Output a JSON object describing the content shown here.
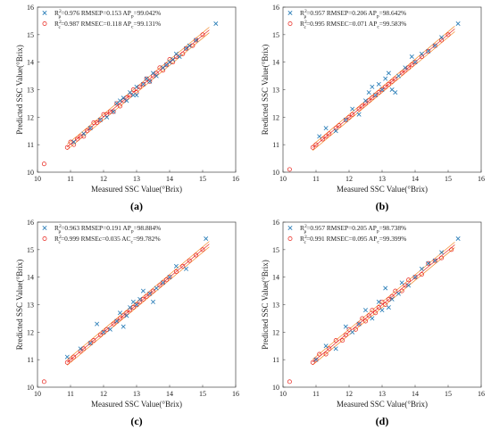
{
  "chart_data": [
    {
      "type": "scatter",
      "panel_label": "(a)",
      "xlabel": "Measured SSC Value(°Brix)",
      "ylabel": "Predicted SSC Value(°Brix)",
      "xlim": [
        10,
        16
      ],
      "ylim": [
        10,
        16
      ],
      "xticks": [
        "10",
        "11",
        "12",
        "13",
        "14",
        "15",
        "16"
      ],
      "yticks": [
        "10",
        "11",
        "12",
        "13",
        "14",
        "15",
        "16"
      ],
      "legend": [
        {
          "marker": "x",
          "color": "#1f77b4",
          "sym": "R",
          "sup": "2",
          "sub": "p",
          "rest": "=0.976  RMSEP=0.153  AP",
          "rsub": "p",
          "val": "=99.042%"
        },
        {
          "marker": "o",
          "color": "#e8231b",
          "sym": "R",
          "sup": "2",
          "sub": "c",
          "rest": "=0.987  RMSEC=0.118  AP",
          "rsub": "c",
          "val": "=99.131%"
        }
      ],
      "series": [
        {
          "marker": "x",
          "color": "#1f77b4",
          "x": [
            11.1,
            11.4,
            11.6,
            11.9,
            12.1,
            12.3,
            12.4,
            12.5,
            12.6,
            12.7,
            12.8,
            12.9,
            13.0,
            13.0,
            13.2,
            13.3,
            13.4,
            13.5,
            13.6,
            13.8,
            13.9,
            14.0,
            14.1,
            14.2,
            14.3,
            14.5,
            14.6,
            14.8,
            15.4
          ],
          "y": [
            11.1,
            11.4,
            11.6,
            11.9,
            12.0,
            12.2,
            12.5,
            12.6,
            12.7,
            12.6,
            12.9,
            12.8,
            13.1,
            12.8,
            13.2,
            13.4,
            13.3,
            13.6,
            13.5,
            13.8,
            13.9,
            14.0,
            14.1,
            14.3,
            14.2,
            14.5,
            14.6,
            14.8,
            15.4
          ]
        },
        {
          "marker": "o",
          "color": "#e8231b",
          "x": [
            10.2,
            10.9,
            11.0,
            11.1,
            11.2,
            11.3,
            11.4,
            11.5,
            11.6,
            11.7,
            11.8,
            11.9,
            12.0,
            12.1,
            12.2,
            12.3,
            12.4,
            12.5,
            12.6,
            12.7,
            12.8,
            12.9,
            13.0,
            13.1,
            13.2,
            13.3,
            13.4,
            13.5,
            13.6,
            13.7,
            13.8,
            13.9,
            14.0,
            14.1,
            14.2,
            14.4,
            14.5,
            14.7,
            14.8,
            15.0
          ],
          "y": [
            10.3,
            10.9,
            11.1,
            11.0,
            11.2,
            11.3,
            11.3,
            11.5,
            11.6,
            11.8,
            11.8,
            11.9,
            12.1,
            12.1,
            12.2,
            12.2,
            12.5,
            12.4,
            12.6,
            12.7,
            12.8,
            13.0,
            12.9,
            13.1,
            13.2,
            13.4,
            13.3,
            13.5,
            13.6,
            13.8,
            13.7,
            13.9,
            14.1,
            14.0,
            14.2,
            14.3,
            14.5,
            14.6,
            14.8,
            15.0
          ]
        }
      ]
    },
    {
      "type": "scatter",
      "panel_label": "(b)",
      "xlabel": "Measured SSC Value(°Brix)",
      "ylabel": "Rredicted SSC Value(°Brix)",
      "xlim": [
        10,
        16
      ],
      "ylim": [
        10,
        16
      ],
      "xticks": [
        "10",
        "11",
        "12",
        "13",
        "14",
        "15",
        "16"
      ],
      "yticks": [
        "10",
        "11",
        "12",
        "13",
        "14",
        "15",
        "16"
      ],
      "legend": [
        {
          "marker": "x",
          "color": "#1f77b4",
          "sym": "R",
          "sup": "2",
          "sub": "p",
          "rest": "=0.957  RMSEP=0.206  AP",
          "rsub": "p",
          "val": "=98.642%"
        },
        {
          "marker": "o",
          "color": "#e8231b",
          "sym": "R",
          "sup": "2",
          "sub": "c",
          "rest": "=0.995  RMSEC=0.071  AP",
          "rsub": "c",
          "val": "=99.583%"
        }
      ],
      "series": [
        {
          "marker": "x",
          "color": "#1f77b4",
          "x": [
            11.1,
            11.3,
            11.6,
            11.9,
            12.1,
            12.3,
            12.5,
            12.6,
            12.7,
            12.8,
            12.9,
            13.0,
            13.1,
            13.2,
            13.3,
            13.4,
            13.5,
            13.7,
            13.9,
            14.0,
            14.2,
            14.4,
            14.6,
            14.8,
            15.3
          ],
          "y": [
            11.3,
            11.6,
            11.5,
            11.9,
            12.3,
            12.1,
            12.6,
            12.9,
            13.1,
            12.8,
            13.2,
            13.0,
            13.4,
            13.6,
            13.0,
            12.9,
            13.5,
            13.8,
            14.2,
            14.0,
            14.3,
            14.4,
            14.6,
            14.9,
            15.4
          ]
        },
        {
          "marker": "o",
          "color": "#e8231b",
          "x": [
            10.2,
            10.9,
            11.0,
            11.2,
            11.3,
            11.4,
            11.6,
            11.7,
            11.9,
            12.0,
            12.1,
            12.3,
            12.4,
            12.5,
            12.6,
            12.7,
            12.8,
            12.9,
            13.0,
            13.1,
            13.2,
            13.3,
            13.4,
            13.6,
            13.7,
            13.8,
            13.9,
            14.0,
            14.2,
            14.4,
            14.6,
            14.8,
            15.0
          ],
          "y": [
            10.1,
            10.9,
            11.0,
            11.2,
            11.3,
            11.4,
            11.6,
            11.7,
            11.9,
            12.0,
            12.1,
            12.3,
            12.4,
            12.5,
            12.6,
            12.7,
            12.8,
            12.9,
            13.0,
            13.1,
            13.2,
            13.3,
            13.4,
            13.6,
            13.7,
            13.8,
            13.9,
            14.0,
            14.2,
            14.4,
            14.6,
            14.8,
            15.0
          ]
        }
      ]
    },
    {
      "type": "scatter",
      "panel_label": "(c)",
      "xlabel": "Measured SSC Value(°Brix)",
      "ylabel": "Rredicted SSC Value(°Brix)",
      "xlim": [
        10,
        16
      ],
      "ylim": [
        10,
        16
      ],
      "xticks": [
        "10",
        "11",
        "12",
        "13",
        "14",
        "15",
        "16"
      ],
      "yticks": [
        "10",
        "11",
        "12",
        "13",
        "14",
        "15",
        "16"
      ],
      "legend": [
        {
          "marker": "x",
          "color": "#1f77b4",
          "sym": "R",
          "sup": "2",
          "sub": "p",
          "rest": "=0.963  RMSEP=0.191  AP",
          "rsub": "p",
          "val": "=98.884%"
        },
        {
          "marker": "o",
          "color": "#e8231b",
          "sym": "R",
          "sup": "2",
          "sub": "c",
          "rest": "=0.999  RMSEc=0.035  AC",
          "rsub": "c",
          "val": "=99.782%"
        }
      ],
      "series": [
        {
          "marker": "x",
          "color": "#1f77b4",
          "x": [
            10.9,
            11.3,
            11.6,
            11.8,
            12.0,
            12.2,
            12.4,
            12.5,
            12.6,
            12.7,
            12.8,
            12.9,
            13.0,
            13.1,
            13.2,
            13.4,
            13.5,
            13.6,
            13.8,
            14.0,
            14.2,
            14.5,
            15.1
          ],
          "y": [
            11.1,
            11.4,
            11.6,
            12.3,
            12.0,
            12.1,
            12.4,
            12.7,
            12.2,
            12.6,
            12.9,
            13.1,
            13.0,
            13.2,
            13.5,
            13.4,
            13.1,
            13.6,
            13.8,
            14.0,
            14.4,
            14.3,
            15.4
          ]
        },
        {
          "marker": "o",
          "color": "#e8231b",
          "x": [
            10.2,
            10.9,
            11.0,
            11.1,
            11.3,
            11.4,
            11.6,
            11.7,
            11.9,
            12.0,
            12.1,
            12.3,
            12.4,
            12.5,
            12.6,
            12.7,
            12.8,
            12.9,
            13.0,
            13.1,
            13.2,
            13.3,
            13.4,
            13.5,
            13.7,
            13.8,
            13.9,
            14.0,
            14.2,
            14.4,
            14.6,
            14.8,
            15.0
          ],
          "y": [
            10.2,
            10.9,
            11.0,
            11.1,
            11.3,
            11.4,
            11.6,
            11.7,
            11.9,
            12.0,
            12.1,
            12.3,
            12.4,
            12.5,
            12.6,
            12.7,
            12.8,
            12.9,
            13.0,
            13.1,
            13.2,
            13.3,
            13.4,
            13.5,
            13.7,
            13.8,
            13.9,
            14.0,
            14.2,
            14.4,
            14.6,
            14.8,
            15.0
          ]
        }
      ]
    },
    {
      "type": "scatter",
      "panel_label": "(d)",
      "xlabel": "Measured SSC Value(°Brix)",
      "ylabel": "Predicted SSC Value(°Brix)",
      "xlim": [
        10,
        16
      ],
      "ylim": [
        10,
        16
      ],
      "xticks": [
        "10",
        "11",
        "12",
        "13",
        "14",
        "15",
        "16"
      ],
      "yticks": [
        "10",
        "11",
        "12",
        "13",
        "14",
        "15",
        "16"
      ],
      "legend": [
        {
          "marker": "x",
          "color": "#1f77b4",
          "sym": "R",
          "sup": "2",
          "sub": "p",
          "rest": "=0.957  RMSEP=0.205  AP",
          "rsub": "p",
          "val": "=98.738%"
        },
        {
          "marker": "o",
          "color": "#e8231b",
          "sym": "R",
          "sup": "2",
          "sub": "c",
          "rest": "=0.991  RMSEC=0.095  AP",
          "rsub": "c",
          "val": "=99.399%"
        }
      ],
      "series": [
        {
          "marker": "x",
          "color": "#1f77b4",
          "x": [
            11.0,
            11.3,
            11.6,
            11.9,
            12.1,
            12.3,
            12.5,
            12.7,
            12.9,
            13.0,
            13.1,
            13.2,
            13.3,
            13.5,
            13.6,
            13.8,
            14.0,
            14.2,
            14.4,
            14.6,
            14.8,
            15.3
          ],
          "y": [
            11.0,
            11.5,
            11.4,
            12.2,
            12.0,
            12.3,
            12.8,
            12.5,
            13.1,
            12.8,
            13.6,
            12.9,
            13.2,
            13.4,
            13.8,
            13.7,
            14.0,
            14.3,
            14.5,
            14.6,
            14.9,
            15.4
          ]
        },
        {
          "marker": "o",
          "color": "#e8231b",
          "x": [
            10.2,
            10.9,
            11.0,
            11.1,
            11.3,
            11.4,
            11.6,
            11.8,
            11.9,
            12.0,
            12.2,
            12.3,
            12.4,
            12.5,
            12.6,
            12.7,
            12.8,
            12.9,
            13.0,
            13.1,
            13.2,
            13.3,
            13.4,
            13.6,
            13.7,
            13.8,
            14.0,
            14.2,
            14.4,
            14.6,
            14.8,
            15.1
          ],
          "y": [
            10.2,
            10.9,
            11.0,
            11.2,
            11.2,
            11.4,
            11.7,
            11.7,
            11.9,
            12.1,
            12.1,
            12.3,
            12.5,
            12.4,
            12.6,
            12.8,
            12.7,
            12.9,
            13.1,
            13.0,
            13.2,
            13.3,
            13.5,
            13.5,
            13.7,
            13.9,
            14.0,
            14.1,
            14.5,
            14.6,
            14.7,
            15.0
          ]
        }
      ]
    }
  ]
}
